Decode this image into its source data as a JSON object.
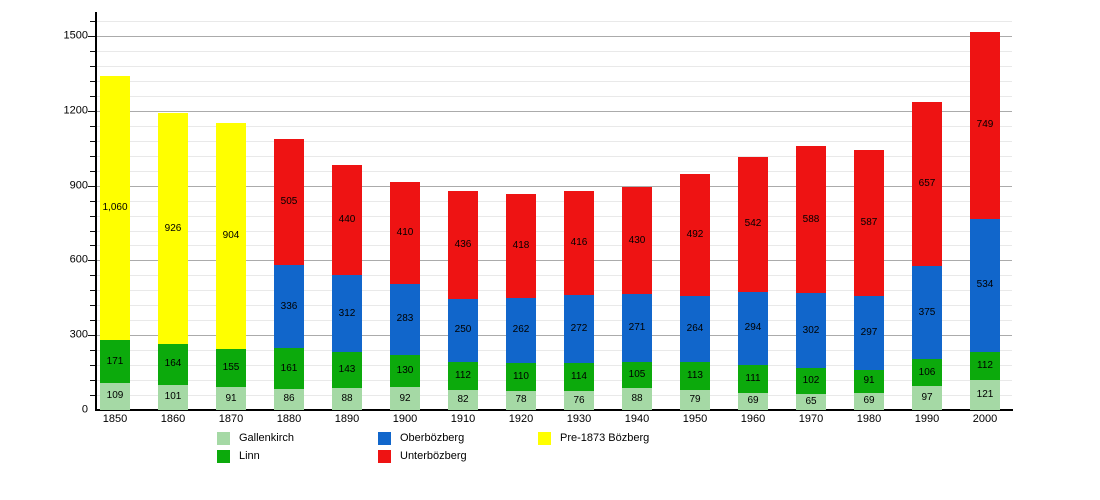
{
  "chart_data": {
    "type": "bar",
    "stacked": true,
    "title": "",
    "xlabel": "",
    "ylabel": "",
    "categories": [
      "1850",
      "1860",
      "1870",
      "1880",
      "1890",
      "1900",
      "1910",
      "1920",
      "1930",
      "1940",
      "1950",
      "1960",
      "1970",
      "1980",
      "1990",
      "2000"
    ],
    "series": [
      {
        "name": "Gallenkirch",
        "color": "#a5d9a5",
        "values": [
          109,
          101,
          91,
          86,
          88,
          92,
          82,
          78,
          76,
          88,
          79,
          69,
          65,
          69,
          97,
          121
        ]
      },
      {
        "name": "Linn",
        "color": "#0caa0c",
        "values": [
          171,
          164,
          155,
          161,
          143,
          130,
          112,
          110,
          114,
          105,
          113,
          111,
          102,
          91,
          106,
          112
        ]
      },
      {
        "name": "Oberbözberg",
        "color": "#1166cb",
        "values": [
          0,
          0,
          0,
          336,
          312,
          283,
          250,
          262,
          272,
          271,
          264,
          294,
          302,
          297,
          375,
          534
        ]
      },
      {
        "name": "Unterbözberg",
        "color": "#ee1313",
        "values": [
          0,
          0,
          0,
          505,
          440,
          410,
          436,
          418,
          416,
          430,
          492,
          542,
          588,
          587,
          657,
          749
        ]
      },
      {
        "name": "Pre-1873 Bözberg",
        "color": "#ffff00",
        "values": [
          1060,
          926,
          904,
          0,
          0,
          0,
          0,
          0,
          0,
          0,
          0,
          0,
          0,
          0,
          0,
          0
        ]
      }
    ],
    "ylim": [
      0,
      1590
    ],
    "yticks": [
      0,
      300,
      600,
      900,
      1200,
      1500
    ],
    "minor_tick_step": 60,
    "grid": true,
    "value_labels": "inside-center",
    "legend_position": "bottom",
    "legend_columns": [
      [
        "Gallenkirch",
        "Linn"
      ],
      [
        "Oberbözberg",
        "Unterbözberg"
      ],
      [
        "Pre-1873 Bözberg"
      ]
    ]
  }
}
